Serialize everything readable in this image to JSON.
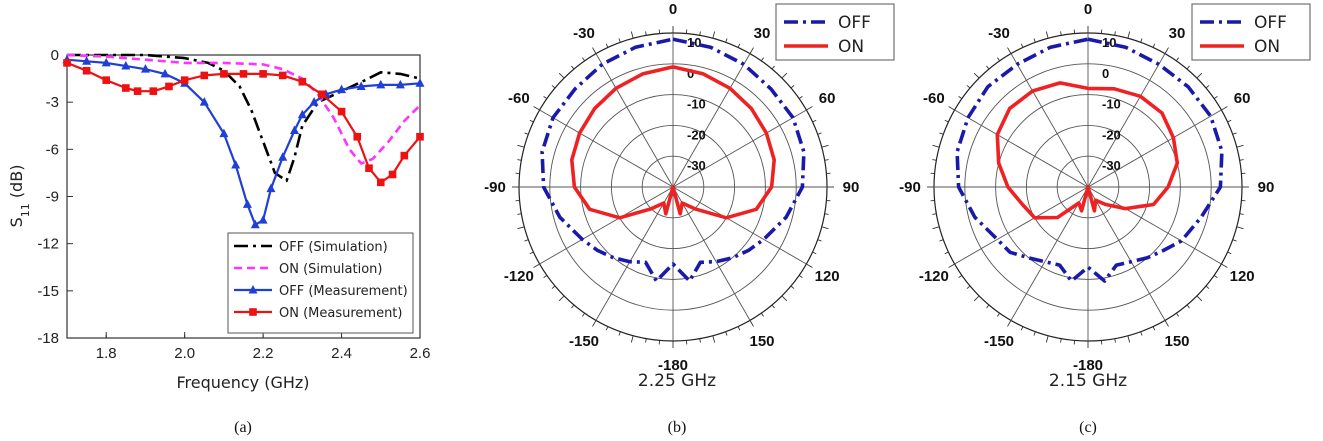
{
  "chart_data": [
    {
      "type": "line",
      "panel_label": "(a)",
      "xlabel": "Frequency (GHz)",
      "ylabel": "S",
      "ylabel_sub": "11",
      "ylabel_unit": " (dB)",
      "xlim": [
        1.7,
        2.6
      ],
      "ylim": [
        -18,
        0
      ],
      "xticks": [
        1.8,
        2.0,
        2.2,
        2.4,
        2.6
      ],
      "xtick_labels": [
        "1.8",
        "2.0",
        "2.2",
        "2.4",
        "2.6"
      ],
      "yticks": [
        0,
        -3,
        -6,
        -9,
        -12,
        -15,
        -18
      ],
      "ytick_labels": [
        "0",
        "-3",
        "-6",
        "-9",
        "-12",
        "-15",
        "-18"
      ],
      "legend_position": "bottom-right",
      "series": [
        {
          "name": "OFF (Simulation)",
          "color": "#000000",
          "style": "dashdot",
          "x": [
            1.7,
            1.8,
            1.9,
            2.0,
            2.06,
            2.1,
            2.14,
            2.17,
            2.2,
            2.23,
            2.26,
            2.28,
            2.3,
            2.34,
            2.4,
            2.46,
            2.5,
            2.55,
            2.6
          ],
          "y": [
            0,
            0,
            0,
            -0.2,
            -0.5,
            -1.0,
            -2.0,
            -3.5,
            -5.5,
            -7.5,
            -8.0,
            -6.5,
            -4.5,
            -3.0,
            -2.3,
            -1.6,
            -1.1,
            -1.2,
            -1.5
          ]
        },
        {
          "name": "ON (Simulation)",
          "color": "#ff33ff",
          "style": "dash",
          "x": [
            1.7,
            1.8,
            1.9,
            2.0,
            2.1,
            2.2,
            2.25,
            2.3,
            2.34,
            2.38,
            2.42,
            2.45,
            2.48,
            2.52,
            2.56,
            2.6
          ],
          "y": [
            0,
            -0.1,
            -0.3,
            -0.5,
            -0.5,
            -0.6,
            -0.9,
            -1.5,
            -2.5,
            -4.0,
            -6.0,
            -6.9,
            -6.6,
            -5.5,
            -4.2,
            -3.2
          ]
        },
        {
          "name": "OFF (Measurement)",
          "color": "#1f3fd6",
          "style": "solid",
          "marker": "triangle",
          "x": [
            1.7,
            1.75,
            1.8,
            1.85,
            1.9,
            1.95,
            2.0,
            2.05,
            2.1,
            2.13,
            2.16,
            2.18,
            2.2,
            2.22,
            2.25,
            2.28,
            2.3,
            2.33,
            2.36,
            2.4,
            2.45,
            2.5,
            2.55,
            2.6
          ],
          "y": [
            -0.3,
            -0.4,
            -0.5,
            -0.7,
            -0.9,
            -1.2,
            -1.8,
            -3.0,
            -5.0,
            -7.0,
            -9.5,
            -10.8,
            -10.5,
            -8.5,
            -6.5,
            -4.8,
            -3.8,
            -3.0,
            -2.5,
            -2.2,
            -2.0,
            -1.9,
            -1.9,
            -1.8
          ]
        },
        {
          "name": "ON (Measurement)",
          "color": "#ee1111",
          "style": "solid",
          "marker": "square",
          "x": [
            1.7,
            1.75,
            1.8,
            1.85,
            1.88,
            1.92,
            1.96,
            2.0,
            2.05,
            2.1,
            2.15,
            2.2,
            2.25,
            2.3,
            2.35,
            2.4,
            2.44,
            2.47,
            2.5,
            2.53,
            2.56,
            2.6
          ],
          "y": [
            -0.5,
            -1.0,
            -1.6,
            -2.1,
            -2.3,
            -2.3,
            -2.0,
            -1.6,
            -1.3,
            -1.2,
            -1.2,
            -1.2,
            -1.3,
            -1.7,
            -2.5,
            -3.6,
            -5.2,
            -7.2,
            -8.1,
            -7.6,
            -6.4,
            -5.2
          ]
        }
      ]
    },
    {
      "type": "polar",
      "panel_label": "(b)",
      "frequency_label": "2.25 GHz",
      "angle_labels": [
        "0",
        "30",
        "60",
        "90",
        "120",
        "150",
        "-180",
        "-150",
        "-120",
        "-90",
        "-60",
        "-30"
      ],
      "ring_labels": [
        "10",
        "0",
        "-10",
        "-20",
        "-30"
      ],
      "r_range": [
        -40,
        10
      ],
      "legend_position": "top-right",
      "series": [
        {
          "name": "OFF",
          "color": "#1a1aaa",
          "style": "dashdot",
          "angles": [
            0,
            15,
            30,
            45,
            60,
            75,
            90,
            105,
            120,
            130,
            140,
            150,
            160,
            170,
            180,
            190,
            200,
            210,
            220,
            230,
            240,
            255,
            270,
            285,
            300,
            315,
            330,
            345,
            360
          ],
          "values": [
            8,
            7,
            6,
            5,
            5,
            4,
            2,
            -2,
            -6,
            -8,
            -10,
            -12,
            -14,
            -9,
            -15,
            -9,
            -14,
            -12,
            -10,
            -8,
            -6,
            -2,
            2,
            4,
            5,
            5,
            6,
            7,
            8
          ]
        },
        {
          "name": "ON",
          "color": "#ee2222",
          "style": "solid",
          "angles": [
            0,
            15,
            30,
            45,
            60,
            75,
            90,
            105,
            120,
            135,
            150,
            165,
            180,
            195,
            210,
            225,
            240,
            255,
            270,
            285,
            300,
            315,
            330,
            345,
            360
          ],
          "values": [
            -1,
            -2,
            -3,
            -4,
            -5,
            -6,
            -8,
            -12,
            -20,
            -30,
            -34,
            -31,
            -40,
            -31,
            -34,
            -30,
            -20,
            -12,
            -8,
            -6,
            -5,
            -4,
            -3,
            -2,
            -1
          ]
        }
      ]
    },
    {
      "type": "polar",
      "panel_label": "(c)",
      "frequency_label": "2.15 GHz",
      "angle_labels": [
        "0",
        "30",
        "60",
        "90",
        "120",
        "150",
        "-180",
        "-150",
        "-120",
        "-90",
        "-60",
        "-30"
      ],
      "ring_labels": [
        "10",
        "0",
        "-10",
        "-20",
        "-30"
      ],
      "r_range": [
        -40,
        10
      ],
      "legend_position": "top-right",
      "series": [
        {
          "name": "OFF",
          "color": "#1a1aaa",
          "style": "dashdot",
          "angles": [
            0,
            15,
            30,
            45,
            60,
            75,
            90,
            105,
            120,
            130,
            140,
            150,
            160,
            170,
            180,
            190,
            200,
            210,
            220,
            230,
            240,
            255,
            270,
            285,
            300,
            315,
            330,
            345,
            360
          ],
          "values": [
            8,
            7,
            6,
            6,
            6,
            5,
            3,
            -2,
            -5,
            -8,
            -10,
            -12,
            -13,
            -9,
            -14,
            -9,
            -13,
            -12,
            -10,
            -7,
            -6,
            -2,
            2,
            4,
            5,
            6,
            6,
            7,
            8
          ]
        },
        {
          "name": "ON",
          "color": "#ee2222",
          "style": "solid",
          "angles": [
            0,
            15,
            30,
            45,
            60,
            75,
            90,
            105,
            120,
            135,
            150,
            165,
            180,
            195,
            210,
            225,
            240,
            255,
            270,
            285,
            300,
            315,
            330,
            345,
            360
          ],
          "values": [
            -8,
            -7,
            -6,
            -6,
            -8,
            -10,
            -14,
            -18,
            -26,
            -32,
            -35,
            -32,
            -40,
            -32,
            -34,
            -26,
            -20,
            -18,
            -14,
            -10,
            -6,
            -4,
            -4,
            -5,
            -8
          ]
        }
      ]
    }
  ]
}
